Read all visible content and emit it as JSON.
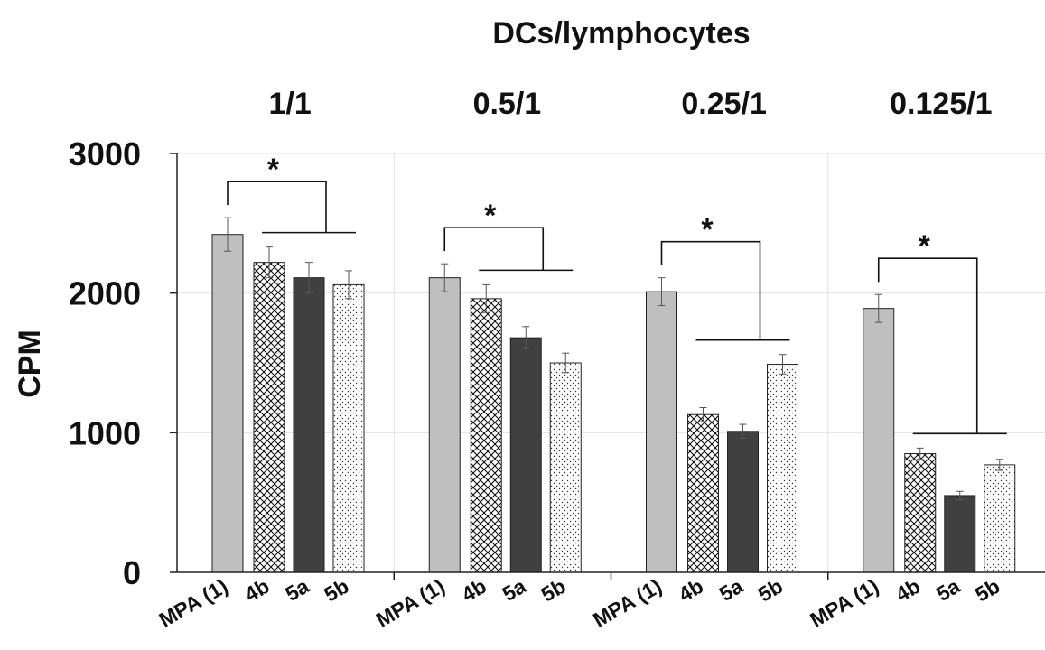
{
  "chart_data": {
    "type": "bar",
    "title": "DCs/lymphocytes",
    "ylabel": "CPM",
    "xlabel": "",
    "ylim": [
      0,
      3000
    ],
    "yticks": [
      0,
      1000,
      2000,
      3000
    ],
    "grid": true,
    "legend": "none",
    "categories": [
      "MPA (1)",
      "4b",
      "5a",
      "5b"
    ],
    "groups": [
      {
        "label": "1/1",
        "values": [
          2420,
          2220,
          2110,
          2060
        ],
        "errors": [
          120,
          110,
          110,
          100
        ]
      },
      {
        "label": "0.5/1",
        "values": [
          2110,
          1960,
          1680,
          1500
        ],
        "errors": [
          100,
          100,
          80,
          70
        ]
      },
      {
        "label": "0.25/1",
        "values": [
          2010,
          1130,
          1010,
          1490
        ],
        "errors": [
          100,
          50,
          50,
          70
        ]
      },
      {
        "label": "0.125/1",
        "values": [
          1890,
          850,
          550,
          770
        ],
        "errors": [
          100,
          40,
          30,
          40
        ]
      }
    ],
    "annotations": [
      {
        "group": 0,
        "text": "*"
      },
      {
        "group": 1,
        "text": "*"
      },
      {
        "group": 2,
        "text": "*"
      },
      {
        "group": 3,
        "text": "*"
      }
    ],
    "series_styles": [
      {
        "category": "MPA (1)",
        "fill": "#bfbfbf",
        "pattern": "solid"
      },
      {
        "category": "4b",
        "fill": "#ffffff",
        "pattern": "crosshatch"
      },
      {
        "category": "5a",
        "fill": "#404040",
        "pattern": "solid"
      },
      {
        "category": "5b",
        "fill": "#ffffff",
        "pattern": "dots"
      }
    ]
  }
}
